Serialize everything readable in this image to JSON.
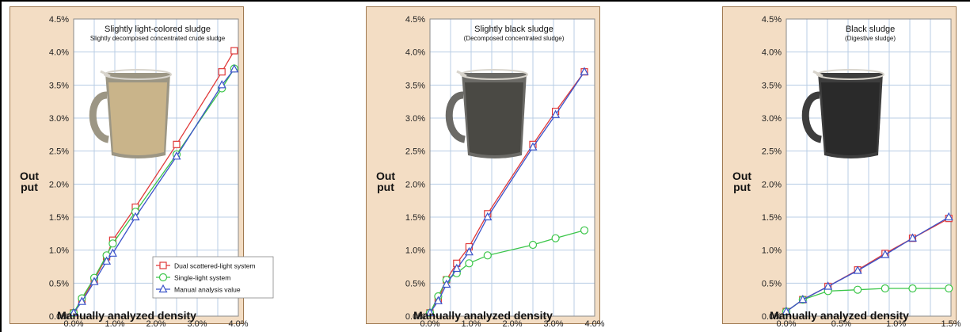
{
  "colors": {
    "dual": "#e03a3a",
    "single": "#3cc64a",
    "manual": "#3b53c9",
    "panel_bg": "#f3ddc4",
    "plot_bg": "#ffffff",
    "grid": "#b8cde4"
  },
  "chart_data": [
    {
      "type": "line",
      "title": "Slightly light-colored sludge",
      "subtitle": "Slightly decomposed concentrated crude sludge",
      "image": "beaker-light-sludge",
      "ylabel_line1": "Out",
      "ylabel_line2": "put",
      "xlabel": "Manually analyzed density",
      "xlim": [
        0,
        4.0
      ],
      "ylim": [
        0,
        4.5
      ],
      "xticks": [
        0,
        1,
        2,
        3,
        4
      ],
      "xtick_labels": [
        "0.0%",
        "1.0%",
        "2.0%",
        "3.0%",
        "4.0%"
      ],
      "yticks": [
        0,
        0.5,
        1,
        1.5,
        2,
        2.5,
        3,
        3.5,
        4,
        4.5
      ],
      "ytick_labels": [
        "0.0%",
        "0.5%",
        "1.0%",
        "1.5%",
        "2.0%",
        "2.5%",
        "3.0%",
        "3.5%",
        "4.0%",
        "4.5%"
      ],
      "legend": {
        "placement": "bottom-right",
        "entries": [
          "Dual scattered-light system",
          "Single-light system",
          "Manual analysis value"
        ]
      },
      "series": [
        {
          "name": "Dual scattered-light system",
          "marker": "square",
          "x": [
            0,
            0.2,
            0.5,
            0.8,
            0.95,
            1.5,
            2.5,
            3.6,
            3.9
          ],
          "y": [
            0.05,
            0.25,
            0.55,
            0.9,
            1.15,
            1.65,
            2.6,
            3.7,
            4.02
          ]
        },
        {
          "name": "Single-light system",
          "marker": "circle",
          "x": [
            0,
            0.2,
            0.5,
            0.8,
            0.95,
            1.5,
            2.5,
            3.6,
            3.9
          ],
          "y": [
            0.05,
            0.27,
            0.58,
            0.92,
            1.1,
            1.58,
            2.45,
            3.45,
            3.75
          ]
        },
        {
          "name": "Manual analysis value",
          "marker": "triangle",
          "x": [
            0,
            0.2,
            0.5,
            0.8,
            0.95,
            1.5,
            2.5,
            3.6,
            3.9
          ],
          "y": [
            0.05,
            0.22,
            0.52,
            0.83,
            0.95,
            1.5,
            2.42,
            3.5,
            3.74
          ]
        }
      ]
    },
    {
      "type": "line",
      "title": "Slightly black sludge",
      "subtitle": "(Decomposed concentrated sludge)",
      "image": "beaker-gray-sludge",
      "ylabel_line1": "Out",
      "ylabel_line2": "put",
      "xlabel": "Manually analyzed density",
      "xlim": [
        0,
        4.0
      ],
      "ylim": [
        0,
        4.5
      ],
      "xticks": [
        0,
        1,
        2,
        3,
        4
      ],
      "xtick_labels": [
        "0.0%",
        "1.0%",
        "2.0%",
        "3.0%",
        "4.0%"
      ],
      "yticks": [
        0,
        0.5,
        1,
        1.5,
        2,
        2.5,
        3,
        3.5,
        4,
        4.5
      ],
      "ytick_labels": [
        "0.0%",
        "0.5%",
        "1.0%",
        "1.5%",
        "2.0%",
        "2.5%",
        "3.0%",
        "3.5%",
        "4.0%",
        "4.5%"
      ],
      "series": [
        {
          "name": "Dual scattered-light system",
          "marker": "square",
          "x": [
            0,
            0.2,
            0.4,
            0.65,
            0.95,
            1.4,
            2.5,
            3.05,
            3.75
          ],
          "y": [
            0.05,
            0.25,
            0.55,
            0.8,
            1.05,
            1.55,
            2.6,
            3.1,
            3.7
          ]
        },
        {
          "name": "Single-light system",
          "marker": "circle",
          "x": [
            0,
            0.2,
            0.4,
            0.65,
            0.95,
            1.4,
            2.5,
            3.05,
            3.75
          ],
          "y": [
            0.05,
            0.3,
            0.55,
            0.65,
            0.8,
            0.92,
            1.08,
            1.18,
            1.3
          ]
        },
        {
          "name": "Manual analysis value",
          "marker": "triangle",
          "x": [
            0,
            0.2,
            0.4,
            0.65,
            0.95,
            1.4,
            2.5,
            3.05,
            3.75
          ],
          "y": [
            0.05,
            0.23,
            0.48,
            0.72,
            0.97,
            1.5,
            2.56,
            3.05,
            3.7
          ]
        }
      ]
    },
    {
      "type": "line",
      "title": "Black sludge",
      "subtitle": "(Digestive sludge)",
      "image": "beaker-black-sludge",
      "ylabel_line1": "Out",
      "ylabel_line2": "put",
      "xlabel": "Manually analyzed density",
      "xlim": [
        0,
        1.5
      ],
      "ylim": [
        0,
        4.5
      ],
      "xticks": [
        0,
        0.5,
        1,
        1.5
      ],
      "xtick_labels": [
        "0.0%",
        "0.5%",
        "1.0%",
        "1.5%"
      ],
      "yticks": [
        0,
        0.5,
        1,
        1.5,
        2,
        2.5,
        3,
        3.5,
        4,
        4.5
      ],
      "ytick_labels": [
        "0.0%",
        "0.5%",
        "1.0%",
        "1.5%",
        "2.0%",
        "2.5%",
        "3.0%",
        "3.5%",
        "4.0%",
        "4.5%"
      ],
      "series": [
        {
          "name": "Dual scattered-light system",
          "marker": "square",
          "x": [
            0,
            0.15,
            0.38,
            0.65,
            0.9,
            1.15,
            1.48
          ],
          "y": [
            0.07,
            0.25,
            0.45,
            0.7,
            0.95,
            1.18,
            1.48
          ]
        },
        {
          "name": "Single-light system",
          "marker": "circle",
          "x": [
            0,
            0.15,
            0.38,
            0.65,
            0.9,
            1.15,
            1.48
          ],
          "y": [
            0.07,
            0.25,
            0.38,
            0.4,
            0.42,
            0.42,
            0.42
          ]
        },
        {
          "name": "Manual analysis value",
          "marker": "triangle",
          "x": [
            0,
            0.15,
            0.38,
            0.65,
            0.9,
            1.15,
            1.48
          ],
          "y": [
            0.07,
            0.25,
            0.45,
            0.69,
            0.93,
            1.18,
            1.5
          ]
        }
      ]
    }
  ]
}
